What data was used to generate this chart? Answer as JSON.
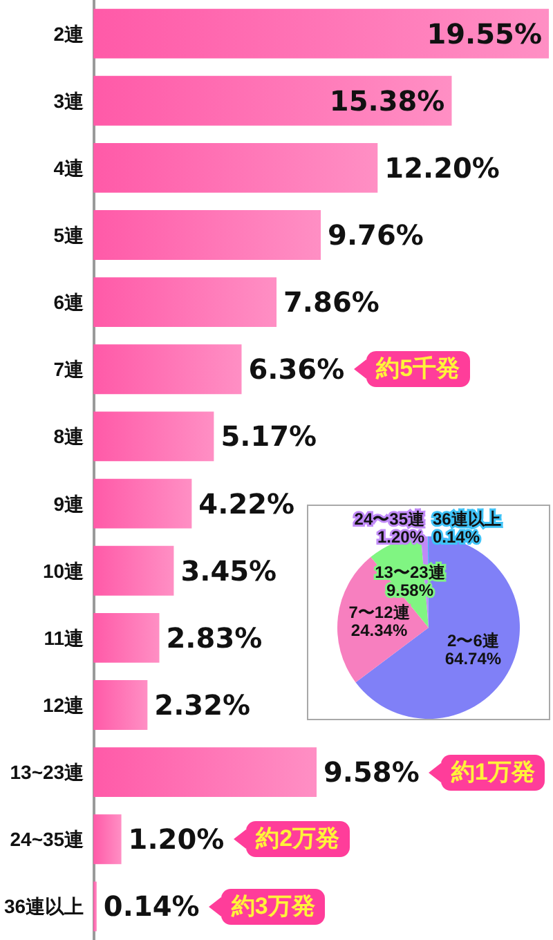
{
  "chart_data": [
    {
      "type": "bar",
      "orientation": "horizontal",
      "categories": [
        "2連",
        "3連",
        "4連",
        "5連",
        "6連",
        "7連",
        "8連",
        "9連",
        "10連",
        "11連",
        "12連",
        "13~23連",
        "24~35連",
        "36連以上"
      ],
      "values": [
        19.55,
        15.38,
        12.2,
        9.76,
        7.86,
        6.36,
        5.17,
        4.22,
        3.45,
        2.83,
        2.32,
        9.58,
        1.2,
        0.14
      ],
      "value_labels": [
        "19.55%",
        "15.38%",
        "12.20%",
        "9.76%",
        "7.86%",
        "6.36%",
        "5.17%",
        "4.22%",
        "3.45%",
        "2.83%",
        "2.32%",
        "9.58%",
        "1.20%",
        "0.14%"
      ],
      "color": "#ff5aa8",
      "annotations": [
        "約5千発",
        "約1万発",
        "約2万発",
        "約3万発"
      ]
    },
    {
      "type": "pie",
      "categories": [
        "2〜6連",
        "7〜12連",
        "13〜23連",
        "24〜35連",
        "36連以上"
      ],
      "values": [
        64.74,
        24.34,
        9.58,
        1.2,
        0.14
      ],
      "value_labels": [
        "64.74%",
        "24.34%",
        "9.58%",
        "1.20%",
        "0.14%"
      ],
      "colors": [
        "#8080f7",
        "#f77fbf",
        "#80f582",
        "#c08af7",
        "#3fc3f7"
      ]
    }
  ]
}
